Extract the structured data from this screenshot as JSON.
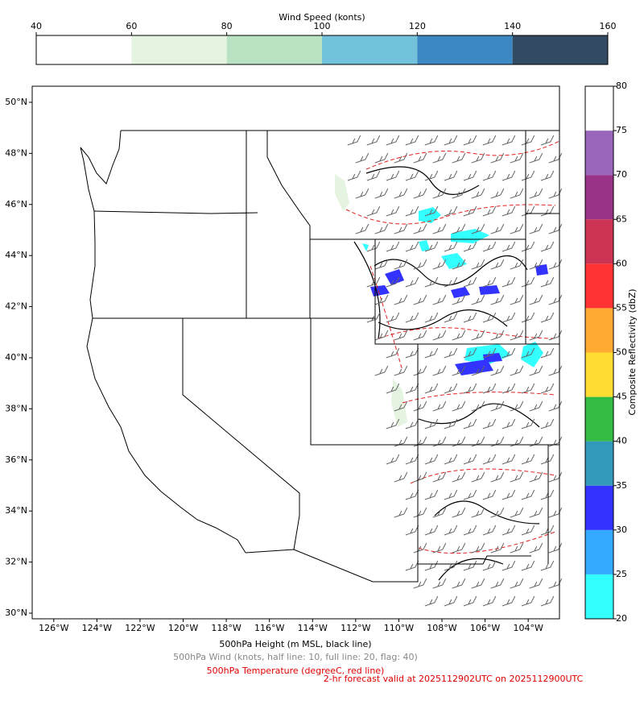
{
  "wind_colorbar": {
    "title": "Wind Speed (konts)",
    "ticks": [
      40,
      60,
      80,
      100,
      120,
      140,
      160
    ],
    "colors": [
      "#ffffff",
      "#e5f4e0",
      "#b9e2c3",
      "#71c2da",
      "#3b88c2",
      "#324b62"
    ]
  },
  "reflectivity_colorbar": {
    "title": "Composite Reflectivity (dbZ)",
    "ticks": [
      20,
      25,
      30,
      35,
      40,
      45,
      50,
      55,
      60,
      65,
      70,
      75,
      80
    ],
    "colors": [
      "#33ffff",
      "#33aaff",
      "#3333ff",
      "#3399bb",
      "#33bb44",
      "#ffdd33",
      "#ffaa33",
      "#ff3333",
      "#cc3355",
      "#993388",
      "#9966bb",
      "#ffffff"
    ]
  },
  "map": {
    "xlim": [
      -127.0,
      -102.55
    ],
    "ylim": [
      29.78,
      50.63
    ],
    "xticks": [
      {
        "value": -126,
        "label": "126°W"
      },
      {
        "value": -124,
        "label": "124°W"
      },
      {
        "value": -122,
        "label": "122°W"
      },
      {
        "value": -120,
        "label": "120°W"
      },
      {
        "value": -118,
        "label": "118°W"
      },
      {
        "value": -116,
        "label": "116°W"
      },
      {
        "value": -114,
        "label": "114°W"
      },
      {
        "value": -112,
        "label": "112°W"
      },
      {
        "value": -110,
        "label": "110°W"
      },
      {
        "value": -108,
        "label": "108°W"
      },
      {
        "value": -106,
        "label": "106°W"
      },
      {
        "value": -104,
        "label": "104°W"
      }
    ],
    "yticks": [
      {
        "value": 30,
        "label": "30°N"
      },
      {
        "value": 32,
        "label": "32°N"
      },
      {
        "value": 34,
        "label": "34°N"
      },
      {
        "value": 36,
        "label": "36°N"
      },
      {
        "value": 38,
        "label": "38°N"
      },
      {
        "value": 40,
        "label": "40°N"
      },
      {
        "value": 42,
        "label": "42°N"
      },
      {
        "value": 44,
        "label": "44°N"
      },
      {
        "value": 46,
        "label": "46°N"
      },
      {
        "value": 48,
        "label": "48°N"
      },
      {
        "value": 50,
        "label": "50°N"
      }
    ]
  },
  "captions": {
    "height": "500hPa Height (m MSL, black line)",
    "wind": "500hPa Wind (knots, half line: 10, full line: 20, flag: 40)",
    "temperature": "500hPa Temperature (degreeC, red line)",
    "forecast": "2-hr forecast valid at 2025112902UTC on 2025112900UTC"
  }
}
